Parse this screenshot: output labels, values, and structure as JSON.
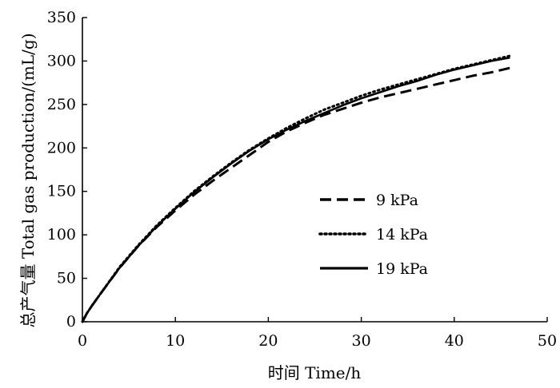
{
  "chart_data": {
    "type": "line",
    "xlabel": "时间  Time/h",
    "ylabel": "总产气量  Total gas production/(mL/g)",
    "xlim": [
      0,
      50
    ],
    "ylim": [
      0,
      350
    ],
    "x_ticks": [
      "0",
      "10",
      "20",
      "30",
      "40",
      "50"
    ],
    "y_ticks": [
      "0",
      "50",
      "100",
      "150",
      "200",
      "250",
      "300",
      "350"
    ],
    "grid": false,
    "legend_position": "center-right",
    "series": [
      {
        "name": "9 kPa",
        "style": "dashed",
        "color": "#000000",
        "x": [
          0,
          0.5,
          1,
          2,
          4,
          6,
          8,
          10,
          12,
          14,
          16,
          18,
          20,
          22,
          24,
          26,
          28,
          30,
          32,
          34,
          36,
          38,
          40,
          42,
          44,
          46
        ],
        "y": [
          0,
          10,
          18,
          33,
          62,
          87,
          109,
          128,
          146,
          162,
          177,
          192,
          207,
          219,
          229,
          238,
          245,
          252,
          258,
          263,
          268,
          273,
          278,
          283,
          287,
          292
        ]
      },
      {
        "name": "14 kPa",
        "style": "dotted",
        "color": "#000000",
        "x": [
          0,
          0.5,
          1,
          2,
          4,
          6,
          8,
          10,
          12,
          14,
          16,
          18,
          20,
          22,
          24,
          26,
          28,
          30,
          32,
          34,
          36,
          38,
          40,
          42,
          44,
          46
        ],
        "y": [
          0,
          10,
          18,
          33,
          63,
          88,
          111,
          131,
          150,
          167,
          183,
          198,
          211,
          223,
          234,
          244,
          252,
          260,
          267,
          273,
          279,
          285,
          291,
          296,
          301,
          306
        ]
      },
      {
        "name": "19 kPa",
        "style": "solid",
        "color": "#000000",
        "x": [
          0,
          0.5,
          1,
          2,
          4,
          6,
          8,
          10,
          12,
          14,
          16,
          18,
          20,
          22,
          24,
          26,
          28,
          30,
          32,
          34,
          36,
          38,
          40,
          42,
          44,
          46
        ],
        "y": [
          0,
          10,
          18,
          33,
          62,
          87,
          110,
          130,
          149,
          166,
          182,
          197,
          210,
          221,
          231,
          240,
          249,
          257,
          264,
          271,
          277,
          284,
          290,
          295,
          300,
          304
        ]
      }
    ]
  }
}
